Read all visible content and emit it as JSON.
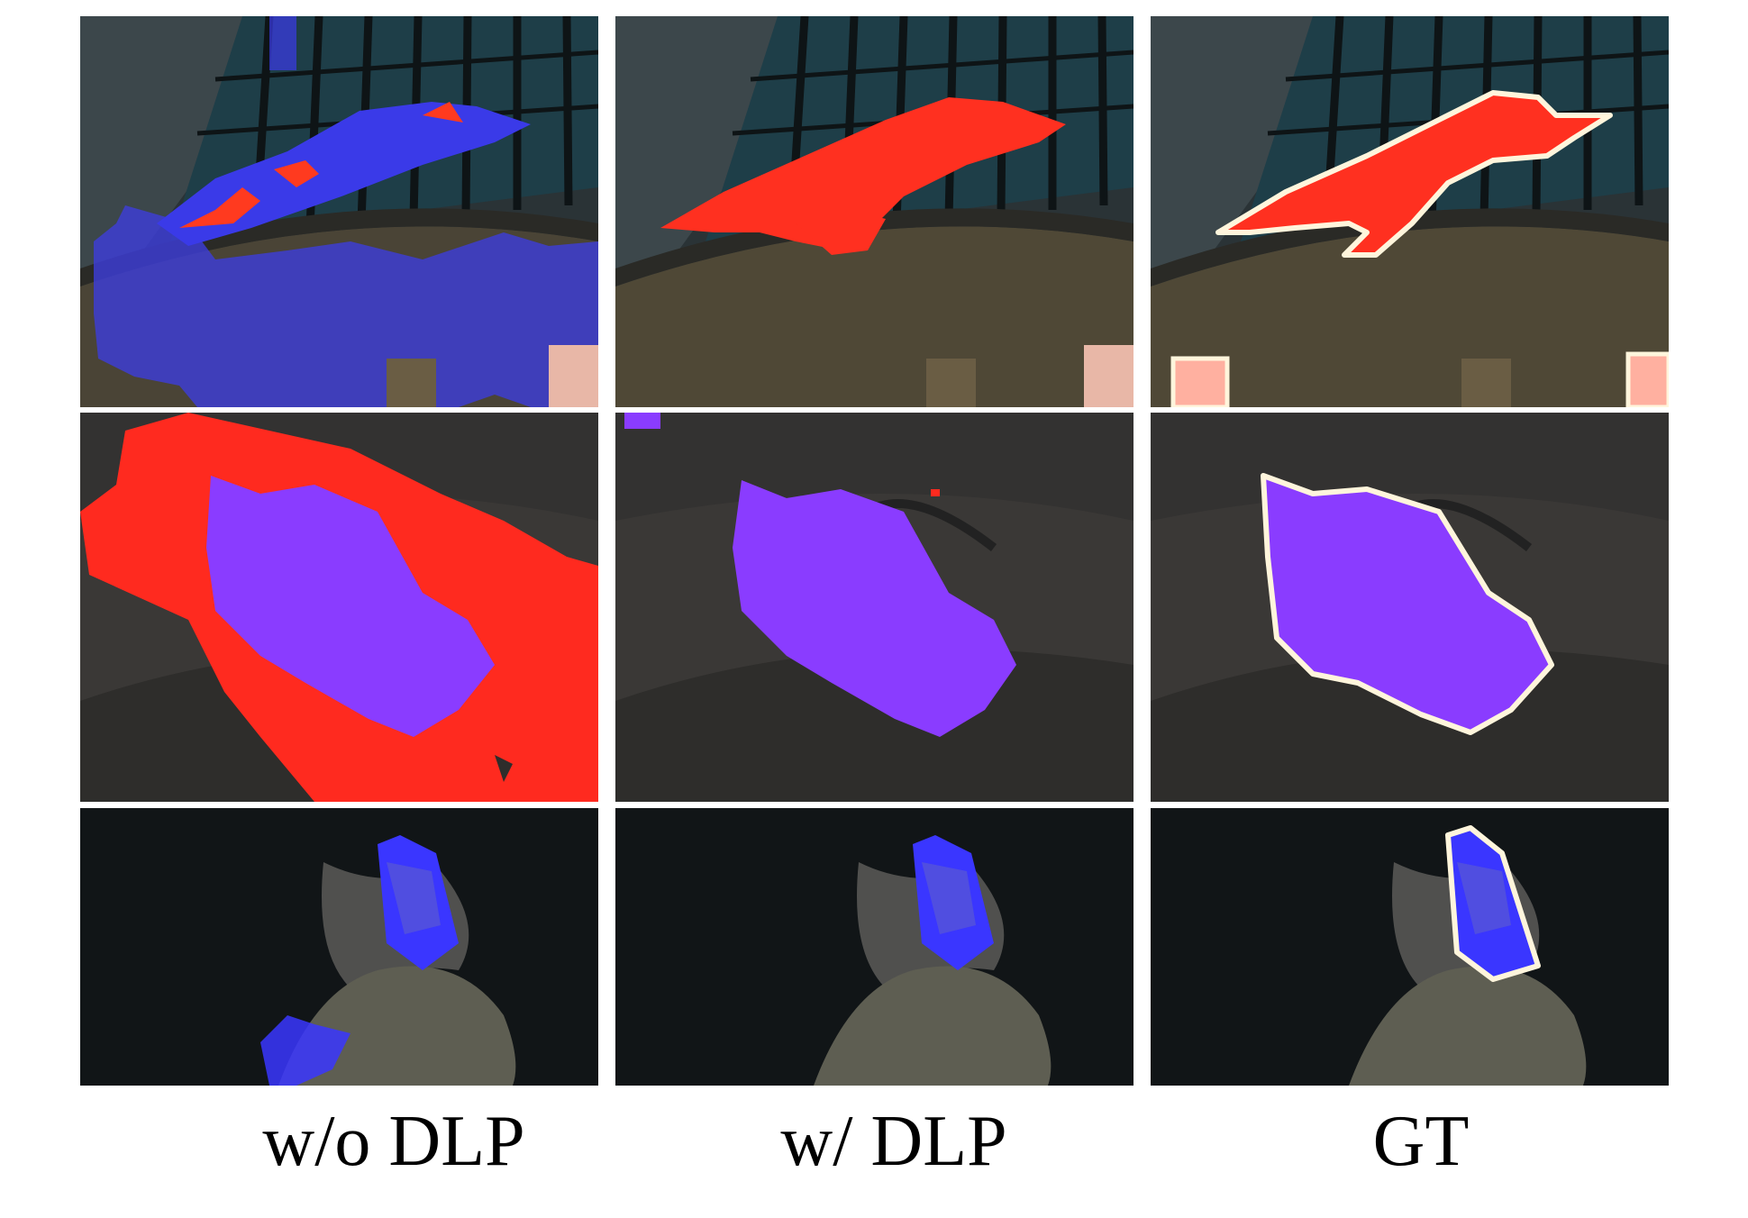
{
  "columns": [
    {
      "id": "wo_dlp",
      "caption": "w/o DLP"
    },
    {
      "id": "w_dlp",
      "caption": "w/ DLP"
    },
    {
      "id": "gt",
      "caption": "GT"
    }
  ],
  "rows": [
    {
      "id": "airplane",
      "overlays": {
        "wo_dlp": "blue-red mixed mask, large blue leakage onto wall",
        "w_dlp": "red mask on airplane",
        "gt": "red mask on airplane with white outline, pink masks on two portraits"
      }
    },
    {
      "id": "puppy",
      "overlays": {
        "wo_dlp": "purple puppy mask, red leakage on cushion",
        "w_dlp": "purple puppy mask",
        "gt": "purple puppy mask with white outline"
      }
    },
    {
      "id": "boat",
      "overlays": {
        "wo_dlp": "blue boat mask, blue leakage on wake",
        "w_dlp": "blue boat mask",
        "gt": "blue boat mask with white outline"
      }
    }
  ],
  "colors": {
    "mask_red": "#ff2a1f",
    "mask_blue": "#3a36ff",
    "mask_purple": "#8a3cff",
    "mask_pink": "#ffb0a0",
    "outline": "#fff5dc"
  }
}
